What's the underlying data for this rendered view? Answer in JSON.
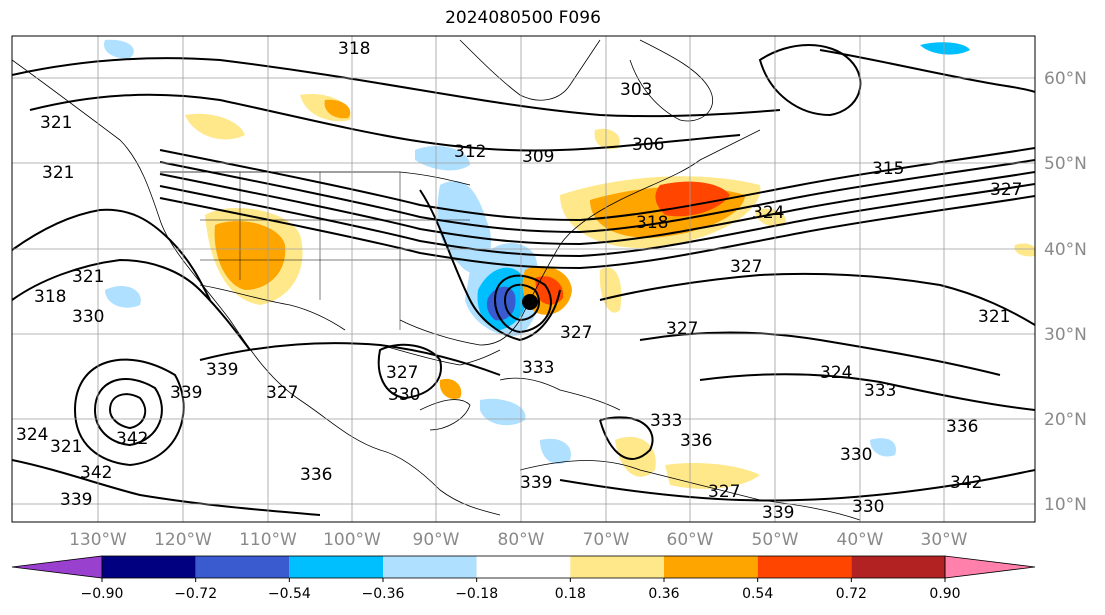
{
  "title": "2024080500 F096",
  "lon_labels": [
    "130°W",
    "120°W",
    "110°W",
    "100°W",
    "90°W",
    "80°W",
    "70°W",
    "60°W",
    "50°W",
    "40°W",
    "30°W"
  ],
  "lat_labels": [
    "60°N",
    "50°N",
    "40°N",
    "30°N",
    "20°N",
    "10°N"
  ],
  "contour_labels": [
    "318",
    "312",
    "309",
    "306",
    "303",
    "315",
    "327",
    "324",
    "318",
    "327",
    "327",
    "321",
    "330",
    "321",
    "321",
    "318",
    "333",
    "327",
    "324",
    "333",
    "336",
    "339",
    "339",
    "342",
    "339",
    "330",
    "333",
    "342",
    "336",
    "327",
    "339",
    "330",
    "324",
    "321",
    "336",
    "339",
    "321",
    "327",
    "330",
    "342",
    "327"
  ],
  "colorbar": {
    "ticks": [
      "−0.90",
      "−0.72",
      "−0.54",
      "−0.36",
      "−0.18",
      "0.18",
      "0.36",
      "0.54",
      "0.72",
      "0.90"
    ],
    "colors": [
      "#9a40cf",
      "#000080",
      "#3a5bd0",
      "#00bfff",
      "#b0e0ff",
      "#ffffff",
      "#ffe88a",
      "#ffa500",
      "#ff4500",
      "#b22222",
      "#ff80aa"
    ]
  },
  "accent_colors": {
    "grid": "#9e9e9e",
    "contour": "#000000"
  }
}
